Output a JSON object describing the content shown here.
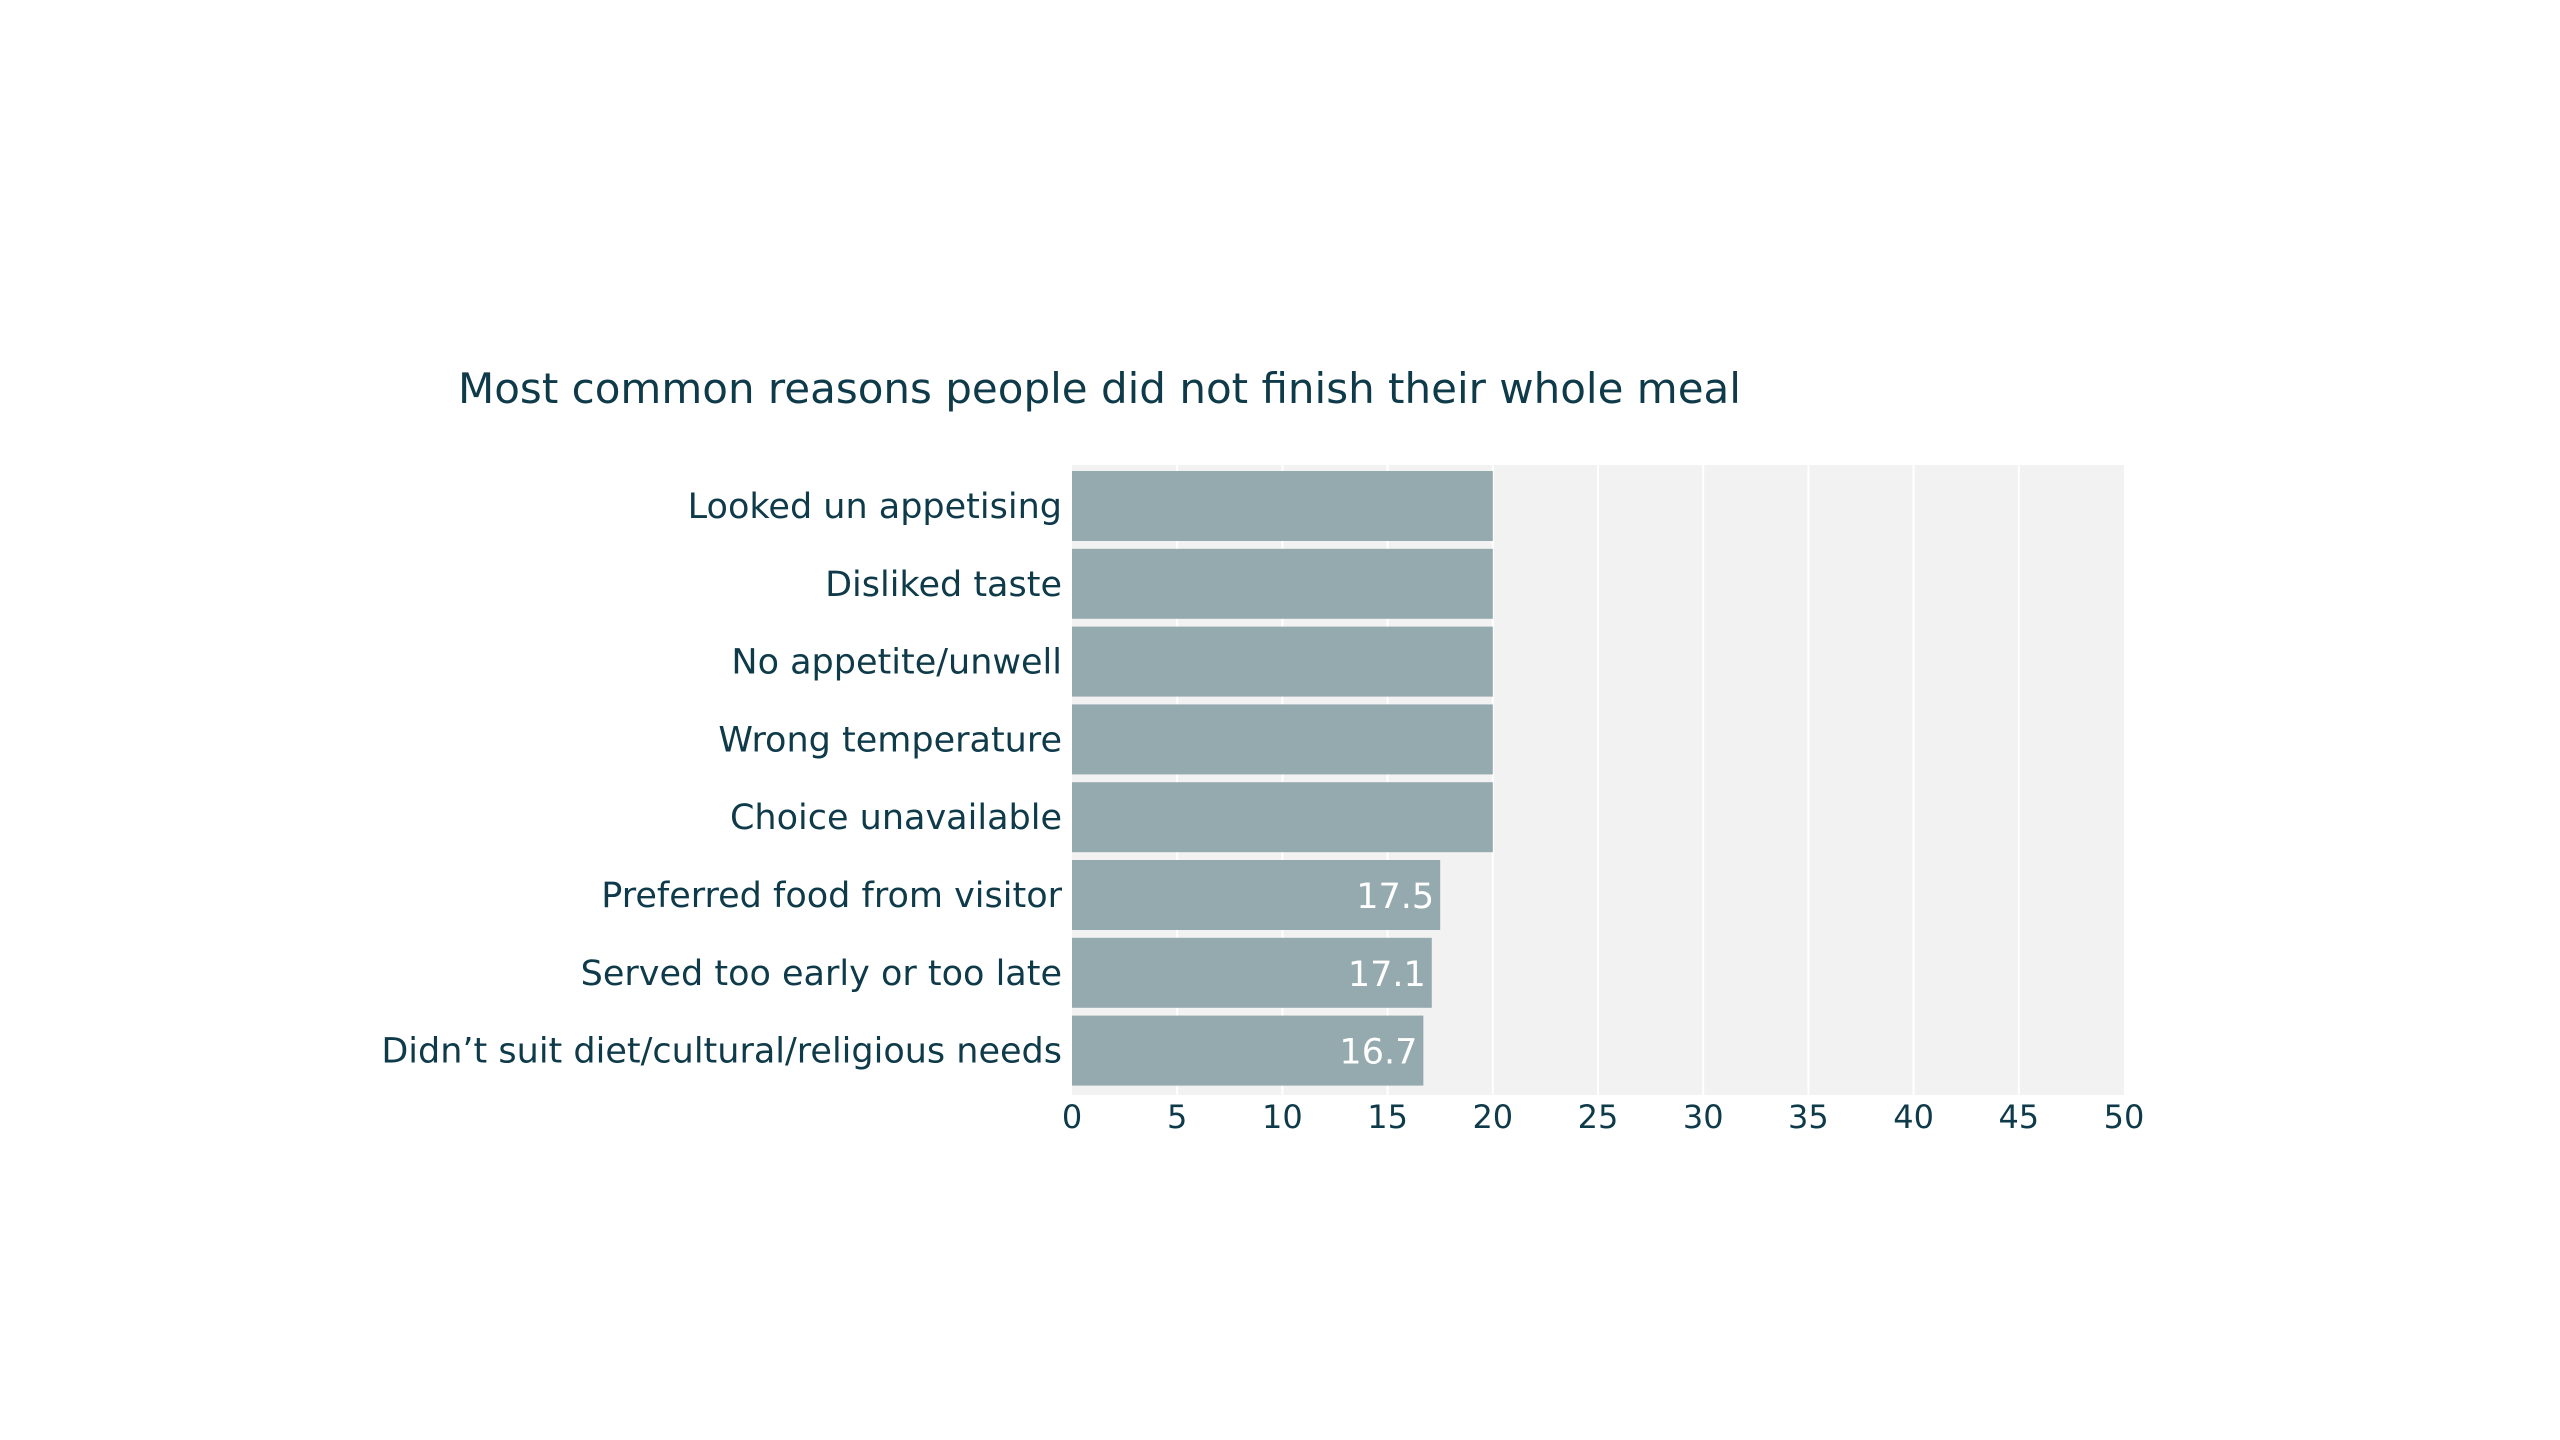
{
  "chart_data": {
    "type": "bar",
    "orientation": "horizontal",
    "title": "Most common reasons people did not finish their whole meal",
    "xlabel": "",
    "ylabel": "",
    "categories": [
      "Looked un appetising",
      "Disliked taste",
      "No appetite/unwell",
      "Wrong temperature",
      "Choice unavailable",
      "Preferred food from visitor",
      "Served too early or too late",
      "Didn’t suit diet/cultural/religious needs"
    ],
    "values": [
      20,
      20,
      20,
      20,
      20,
      17.5,
      17.1,
      16.7
    ],
    "data_labels": [
      "",
      "",
      "",
      "",
      "",
      "17.5",
      "17.1",
      "16.7"
    ],
    "xlim": [
      0,
      50
    ],
    "xticks": [
      0,
      5,
      10,
      15,
      20,
      25,
      30,
      35,
      40,
      45,
      50
    ],
    "grid": "vertical",
    "legend": "none",
    "colors": {
      "bar": "#93a8ac",
      "plot_background": "#f2f2f2",
      "gridline": "#ffffff",
      "text": "#0e3a49",
      "bar_label": "#ffffff"
    }
  }
}
